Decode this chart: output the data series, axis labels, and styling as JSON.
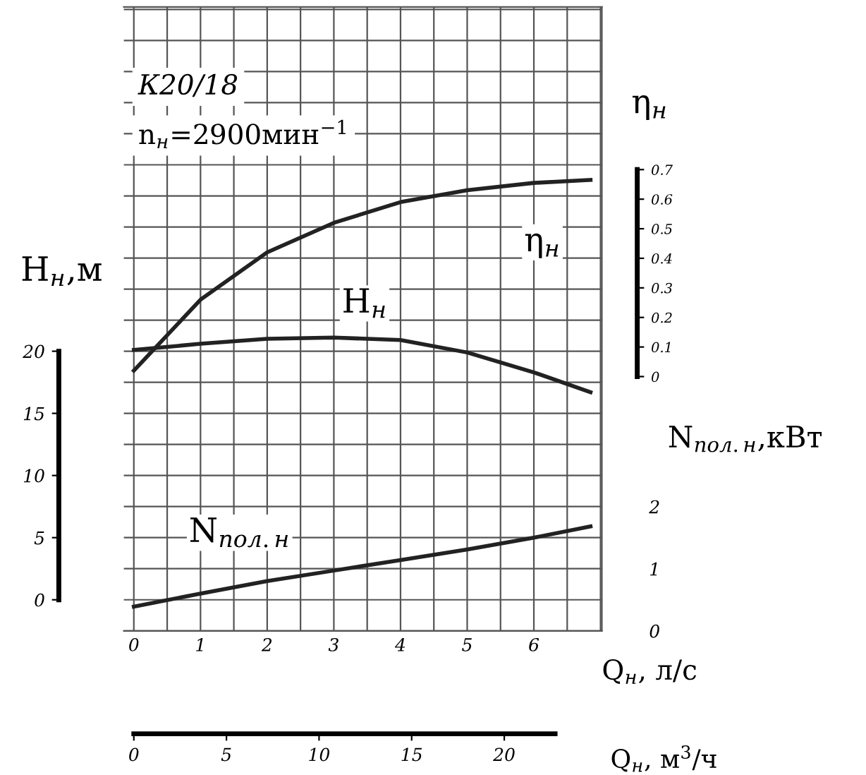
{
  "chart_data": {
    "type": "line",
    "xlabel": "Q$_{н}$, л/с",
    "ylabel": "H$_{н}$,м",
    "y2label": "η$_{н}$",
    "y3label": "N$_{пол.н}$,кВт",
    "x2label": "Q$_{н}$, м$^{3}$/ч",
    "annotations": [
      "К20/18",
      "n$_{н}$=2900мин$^{−1}$"
    ],
    "x": [
      0,
      1,
      2,
      3,
      4,
      5,
      6,
      6.85
    ],
    "series": [
      {
        "name": "H$_{н}$",
        "color": "#222222",
        "axis": "y",
        "values": [
          20.1,
          20.6,
          21.0,
          21.1,
          20.9,
          19.9,
          18.3,
          16.7
        ]
      },
      {
        "name": "η$_{н}$",
        "color": "#222222",
        "axis": "y2",
        "values": [
          0.02,
          0.26,
          0.42,
          0.52,
          0.59,
          0.63,
          0.655,
          0.665
        ]
      },
      {
        "name": "N$_{пол.н}$",
        "color": "#222222",
        "axis": "y3",
        "values": [
          0.39,
          0.6,
          0.8,
          0.97,
          1.14,
          1.31,
          1.5,
          1.68
        ]
      }
    ],
    "xlim": [
      -0.15,
      7.02
    ],
    "xticks": [
      0,
      1,
      2,
      3,
      4,
      5,
      6
    ],
    "ylim": [
      -2.5,
      47.7
    ],
    "yticks": [
      0,
      5,
      10,
      15,
      20
    ],
    "y2lim": [
      -0.86,
      1.25
    ],
    "y2ticks": [
      0,
      0.1,
      0.2,
      0.3,
      0.4,
      0.5,
      0.6,
      0.7
    ],
    "y3lim": [
      0,
      10.04
    ],
    "y3ticks": [
      0,
      1,
      2
    ],
    "x2lim": [
      -0.54,
      25.27
    ],
    "x2ticks": [
      0,
      5,
      10,
      15,
      20
    ],
    "grid": true,
    "legend": false,
    "marker": "none",
    "line_style": "solid"
  }
}
